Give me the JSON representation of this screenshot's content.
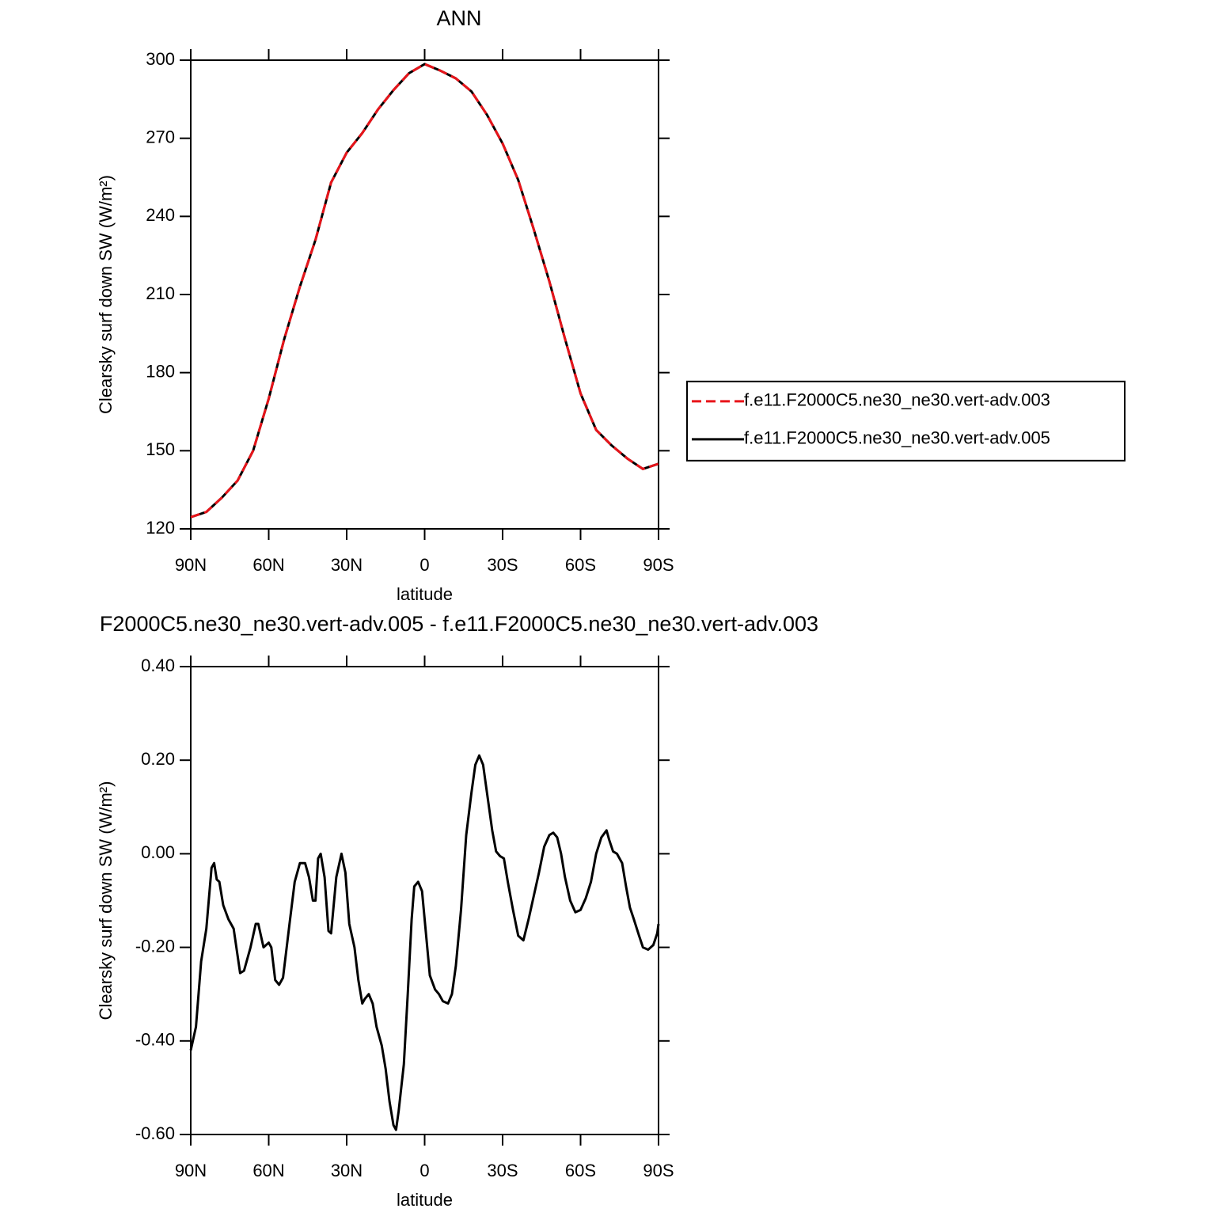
{
  "chart_data": [
    {
      "type": "line",
      "title": "ANN",
      "x_label": "latitude",
      "y_label": "Clearsky surf down SW (W/m²)",
      "x": [
        90,
        84,
        78,
        72,
        66,
        60,
        54,
        48,
        42,
        36,
        30,
        24,
        18,
        12,
        6,
        0,
        -6,
        -12,
        -18,
        -24,
        -30,
        -36,
        -42,
        -48,
        -54,
        -60,
        -66,
        -72,
        -78,
        -84,
        -90
      ],
      "series": [
        {
          "name": "f.e11.F2000C5.ne30_ne30.vert-adv.003",
          "color": "#e8141a",
          "style": "dashed",
          "values": [
            124.5,
            126.5,
            132,
            138.5,
            150,
            170,
            193,
            213,
            231,
            253,
            264.5,
            272,
            281,
            288.5,
            295,
            298.5,
            296,
            293,
            288,
            279,
            268,
            254,
            235,
            215,
            193,
            172,
            158,
            152,
            147,
            143,
            145
          ]
        },
        {
          "name": "f.e11.F2000C5.ne30_ne30.vert-adv.005",
          "color": "#000000",
          "style": "solid",
          "values": [
            124.5,
            126.5,
            132,
            138.5,
            150,
            170,
            193,
            213,
            231,
            253,
            264.5,
            272,
            281,
            288.5,
            295,
            298.5,
            296,
            293,
            288,
            279,
            268,
            254,
            235,
            215,
            193,
            172,
            158,
            152,
            147,
            143,
            145
          ]
        }
      ],
      "xlim": [
        90,
        -90
      ],
      "xticks": [
        {
          "value": 90,
          "label": "90N"
        },
        {
          "value": 60,
          "label": "60N"
        },
        {
          "value": 30,
          "label": "30N"
        },
        0,
        {
          "value": -30,
          "label": "30S"
        },
        {
          "value": -60,
          "label": "60S"
        },
        {
          "value": -90,
          "label": "90S"
        }
      ],
      "ylim": [
        120,
        300
      ],
      "yticks": [
        120,
        150,
        180,
        210,
        240,
        270,
        300
      ],
      "legend": "right"
    },
    {
      "type": "line",
      "title": "F2000C5.ne30_ne30.vert-adv.005 - f.e11.F2000C5.ne30_ne30.vert-adv.003",
      "x_label": "latitude",
      "y_label": "Clearsky surf down SW (W/m²)",
      "x": [
        90,
        88,
        86,
        84,
        82,
        81,
        80,
        79,
        77.5,
        75.5,
        73.5,
        71,
        69.5,
        67,
        65,
        64,
        62,
        60,
        59,
        57.5,
        56,
        54.5,
        52,
        50,
        48,
        46,
        44.5,
        43,
        42,
        41,
        40,
        38.5,
        37,
        36,
        34,
        32,
        30.5,
        29,
        27,
        25.5,
        24,
        23,
        21.5,
        20,
        18.5,
        16.5,
        15,
        13.5,
        12,
        11,
        10,
        8,
        6.5,
        5,
        4,
        2.5,
        1,
        0,
        -2,
        -4,
        -5.5,
        -7,
        -9,
        -10.5,
        -12,
        -14,
        -16,
        -18,
        -19.5,
        -21,
        -22.5,
        -24,
        -26,
        -27.5,
        -29,
        -30.5,
        -32,
        -34,
        -36,
        -38,
        -40,
        -42,
        -44,
        -46,
        -48,
        -49.5,
        -51,
        -52.5,
        -54,
        -56,
        -58,
        -60,
        -62,
        -64,
        -66,
        -68,
        -70,
        -71,
        -72.5,
        -74,
        -76,
        -77.5,
        -79,
        -80.5,
        -82.5,
        -84,
        -86,
        -88,
        -89.5,
        -90
      ],
      "series": [
        {
          "color": "#000000",
          "style": "solid",
          "values": [
            -0.42,
            -0.37,
            -0.23,
            -0.16,
            -0.03,
            -0.02,
            -0.055,
            -0.06,
            -0.11,
            -0.14,
            -0.16,
            -0.255,
            -0.25,
            -0.2,
            -0.15,
            -0.15,
            -0.2,
            -0.19,
            -0.2,
            -0.27,
            -0.28,
            -0.265,
            -0.15,
            -0.06,
            -0.02,
            -0.02,
            -0.05,
            -0.1,
            -0.1,
            -0.01,
            0.0,
            -0.05,
            -0.165,
            -0.17,
            -0.05,
            0.0,
            -0.04,
            -0.15,
            -0.2,
            -0.27,
            -0.32,
            -0.31,
            -0.3,
            -0.32,
            -0.37,
            -0.41,
            -0.46,
            -0.53,
            -0.58,
            -0.59,
            -0.55,
            -0.45,
            -0.3,
            -0.14,
            -0.07,
            -0.06,
            -0.08,
            -0.14,
            -0.26,
            -0.29,
            -0.3,
            -0.315,
            -0.32,
            -0.3,
            -0.24,
            -0.12,
            0.04,
            0.13,
            0.19,
            0.21,
            0.19,
            0.13,
            0.05,
            0.005,
            -0.005,
            -0.01,
            -0.06,
            -0.12,
            -0.175,
            -0.185,
            -0.14,
            -0.09,
            -0.04,
            0.015,
            0.04,
            0.045,
            0.035,
            0.0,
            -0.05,
            -0.1,
            -0.125,
            -0.12,
            -0.095,
            -0.06,
            0.0,
            0.035,
            0.05,
            0.03,
            0.005,
            0.0,
            -0.02,
            -0.07,
            -0.115,
            -0.14,
            -0.175,
            -0.2,
            -0.205,
            -0.195,
            -0.17,
            -0.15
          ]
        }
      ],
      "xlim": [
        90,
        -90
      ],
      "xticks": [
        {
          "value": 90,
          "label": "90N"
        },
        {
          "value": 60,
          "label": "60N"
        },
        {
          "value": 30,
          "label": "30N"
        },
        0,
        {
          "value": -30,
          "label": "30S"
        },
        {
          "value": -60,
          "label": "60S"
        },
        {
          "value": -90,
          "label": "90S"
        }
      ],
      "ylim": [
        -0.6,
        0.4
      ],
      "yticks": [
        {
          "value": -0.6,
          "label": "-0.60"
        },
        {
          "value": -0.4,
          "label": "-0.40"
        },
        {
          "value": -0.2,
          "label": "-0.20"
        },
        {
          "value": 0,
          "label": "0.00"
        },
        {
          "value": 0.2,
          "label": "0.20"
        },
        {
          "value": 0.4,
          "label": "0.40"
        }
      ]
    }
  ]
}
